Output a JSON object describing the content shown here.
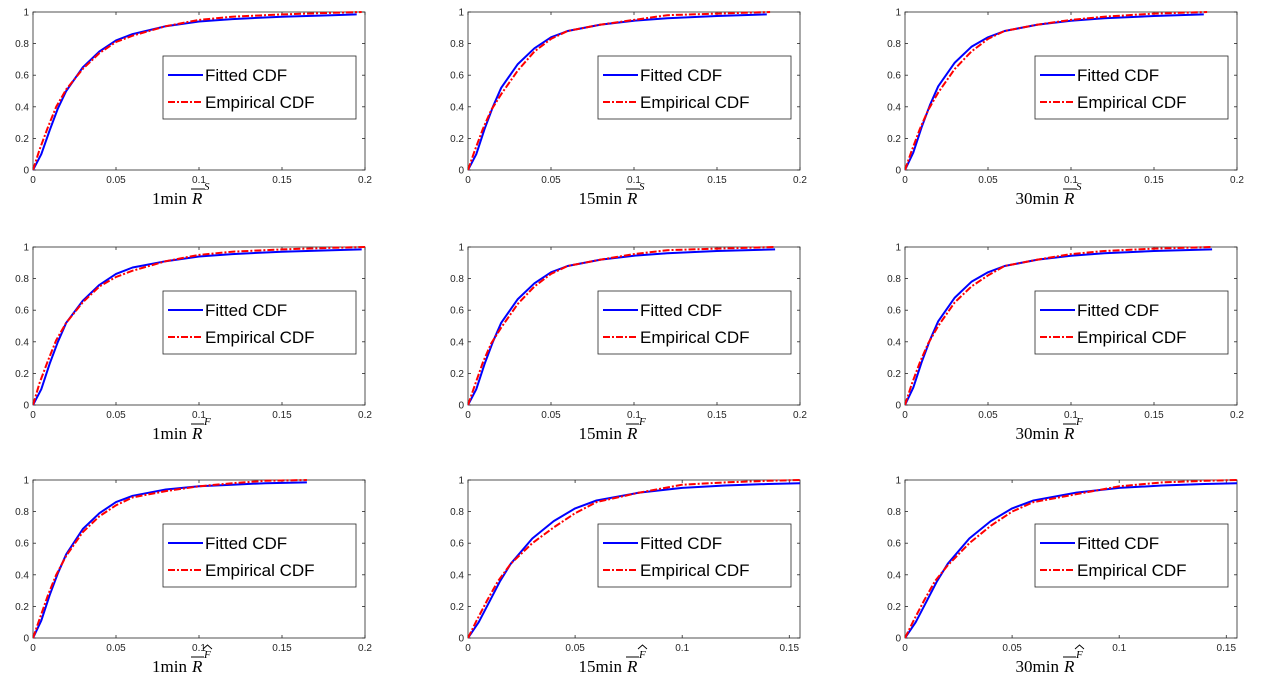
{
  "colors": {
    "fitted": "#0000ff",
    "empirical": "#ff0000",
    "axis": "#262626"
  },
  "chart_data": [
    {
      "type": "line",
      "label_prefix": "1min",
      "label_symbol": "R",
      "label_sup": "S",
      "hat": false,
      "xlim": [
        0,
        0.2
      ],
      "xticks": [
        0,
        0.05,
        0.1,
        0.15,
        0.2
      ],
      "xtick_labels": [
        "0",
        "0.05",
        "0.1",
        "0.15",
        "0.2"
      ],
      "ylim": [
        0,
        1
      ],
      "yticks": [
        0,
        0.2,
        0.4,
        0.6,
        0.8,
        1
      ],
      "ytick_labels": [
        "0",
        "0.2",
        "0.4",
        "0.6",
        "0.8",
        "1"
      ],
      "legend_position": "center-right",
      "series": [
        {
          "name": "Fitted  CDF",
          "x": [
            0,
            0.005,
            0.01,
            0.015,
            0.02,
            0.03,
            0.04,
            0.05,
            0.06,
            0.08,
            0.1,
            0.12,
            0.15,
            0.18,
            0.195
          ],
          "y": [
            0,
            0.1,
            0.25,
            0.39,
            0.5,
            0.65,
            0.75,
            0.82,
            0.86,
            0.91,
            0.94,
            0.955,
            0.97,
            0.98,
            0.985
          ]
        },
        {
          "name": "Empirical CDF",
          "x": [
            0,
            0.004,
            0.009,
            0.014,
            0.02,
            0.03,
            0.04,
            0.05,
            0.06,
            0.08,
            0.1,
            0.12,
            0.15,
            0.18,
            0.198
          ],
          "y": [
            0,
            0.13,
            0.27,
            0.4,
            0.51,
            0.64,
            0.74,
            0.81,
            0.85,
            0.91,
            0.95,
            0.97,
            0.985,
            0.995,
            1
          ]
        }
      ]
    },
    {
      "type": "line",
      "label_prefix": "15min",
      "label_symbol": "R",
      "label_sup": "S",
      "hat": false,
      "xlim": [
        0,
        0.2
      ],
      "xticks": [
        0,
        0.05,
        0.1,
        0.15,
        0.2
      ],
      "xtick_labels": [
        "0",
        "0.05",
        "0.1",
        "0.15",
        "0.2"
      ],
      "ylim": [
        0,
        1
      ],
      "yticks": [
        0,
        0.2,
        0.4,
        0.6,
        0.8,
        1
      ],
      "ytick_labels": [
        "0",
        "0.2",
        "0.4",
        "0.6",
        "0.8",
        "1"
      ],
      "legend_position": "center-right",
      "series": [
        {
          "name": "Fitted  CDF",
          "x": [
            0,
            0.005,
            0.01,
            0.015,
            0.02,
            0.03,
            0.04,
            0.05,
            0.06,
            0.08,
            0.1,
            0.12,
            0.15,
            0.18
          ],
          "y": [
            0,
            0.1,
            0.26,
            0.4,
            0.52,
            0.67,
            0.77,
            0.84,
            0.88,
            0.92,
            0.945,
            0.96,
            0.975,
            0.985
          ]
        },
        {
          "name": "Empirical CDF",
          "x": [
            0,
            0.004,
            0.009,
            0.014,
            0.02,
            0.03,
            0.04,
            0.05,
            0.06,
            0.08,
            0.1,
            0.12,
            0.15,
            0.182
          ],
          "y": [
            0,
            0.12,
            0.26,
            0.38,
            0.48,
            0.63,
            0.75,
            0.83,
            0.88,
            0.92,
            0.95,
            0.98,
            0.99,
            1
          ]
        }
      ]
    },
    {
      "type": "line",
      "label_prefix": "30min",
      "label_symbol": "R",
      "label_sup": "S",
      "hat": false,
      "xlim": [
        0,
        0.2
      ],
      "xticks": [
        0,
        0.05,
        0.1,
        0.15,
        0.2
      ],
      "xtick_labels": [
        "0",
        "0.05",
        "0.1",
        "0.15",
        "0.2"
      ],
      "ylim": [
        0,
        1
      ],
      "yticks": [
        0,
        0.2,
        0.4,
        0.6,
        0.8,
        1
      ],
      "ytick_labels": [
        "0",
        "0.2",
        "0.4",
        "0.6",
        "0.8",
        "1"
      ],
      "legend_position": "center-right",
      "series": [
        {
          "name": "Fitted  CDF",
          "x": [
            0,
            0.005,
            0.01,
            0.015,
            0.02,
            0.03,
            0.04,
            0.05,
            0.06,
            0.08,
            0.1,
            0.12,
            0.15,
            0.18
          ],
          "y": [
            0,
            0.11,
            0.27,
            0.41,
            0.53,
            0.68,
            0.78,
            0.84,
            0.88,
            0.92,
            0.945,
            0.96,
            0.975,
            0.985
          ]
        },
        {
          "name": "Empirical CDF",
          "x": [
            0,
            0.004,
            0.009,
            0.014,
            0.02,
            0.03,
            0.04,
            0.05,
            0.06,
            0.08,
            0.1,
            0.12,
            0.15,
            0.182
          ],
          "y": [
            0,
            0.12,
            0.26,
            0.38,
            0.49,
            0.64,
            0.75,
            0.83,
            0.88,
            0.92,
            0.95,
            0.97,
            0.99,
            1
          ]
        }
      ]
    },
    {
      "type": "line",
      "label_prefix": "1min",
      "label_symbol": "R",
      "label_sup": "F",
      "hat": false,
      "xlim": [
        0,
        0.2
      ],
      "xticks": [
        0,
        0.05,
        0.1,
        0.15,
        0.2
      ],
      "xtick_labels": [
        "0",
        "0.05",
        "0.1",
        "0.15",
        "0.2"
      ],
      "ylim": [
        0,
        1
      ],
      "yticks": [
        0,
        0.2,
        0.4,
        0.6,
        0.8,
        1
      ],
      "ytick_labels": [
        "0",
        "0.2",
        "0.4",
        "0.6",
        "0.8",
        "1"
      ],
      "legend_position": "center-right",
      "series": [
        {
          "name": "Fitted  CDF",
          "x": [
            0,
            0.005,
            0.01,
            0.015,
            0.02,
            0.03,
            0.04,
            0.05,
            0.06,
            0.08,
            0.1,
            0.12,
            0.15,
            0.18,
            0.198
          ],
          "y": [
            0,
            0.1,
            0.26,
            0.4,
            0.52,
            0.66,
            0.76,
            0.83,
            0.87,
            0.91,
            0.94,
            0.955,
            0.97,
            0.98,
            0.985
          ]
        },
        {
          "name": "Empirical CDF",
          "x": [
            0,
            0.004,
            0.009,
            0.014,
            0.02,
            0.03,
            0.04,
            0.05,
            0.06,
            0.08,
            0.1,
            0.12,
            0.15,
            0.18,
            0.2
          ],
          "y": [
            0,
            0.14,
            0.28,
            0.41,
            0.52,
            0.65,
            0.75,
            0.81,
            0.85,
            0.91,
            0.95,
            0.97,
            0.985,
            0.995,
            1
          ]
        }
      ]
    },
    {
      "type": "line",
      "label_prefix": "15min",
      "label_symbol": "R",
      "label_sup": "F",
      "hat": false,
      "xlim": [
        0,
        0.2
      ],
      "xticks": [
        0,
        0.05,
        0.1,
        0.15,
        0.2
      ],
      "xtick_labels": [
        "0",
        "0.05",
        "0.1",
        "0.15",
        "0.2"
      ],
      "ylim": [
        0,
        1
      ],
      "yticks": [
        0,
        0.2,
        0.4,
        0.6,
        0.8,
        1
      ],
      "ytick_labels": [
        "0",
        "0.2",
        "0.4",
        "0.6",
        "0.8",
        "1"
      ],
      "legend_position": "center-right",
      "series": [
        {
          "name": "Fitted  CDF",
          "x": [
            0,
            0.005,
            0.01,
            0.015,
            0.02,
            0.03,
            0.04,
            0.05,
            0.06,
            0.08,
            0.1,
            0.12,
            0.15,
            0.185
          ],
          "y": [
            0,
            0.1,
            0.26,
            0.4,
            0.52,
            0.67,
            0.77,
            0.84,
            0.88,
            0.92,
            0.945,
            0.96,
            0.975,
            0.985
          ]
        },
        {
          "name": "Empirical CDF",
          "x": [
            0,
            0.004,
            0.009,
            0.014,
            0.02,
            0.03,
            0.04,
            0.05,
            0.06,
            0.08,
            0.1,
            0.12,
            0.15,
            0.185
          ],
          "y": [
            0,
            0.12,
            0.27,
            0.39,
            0.49,
            0.64,
            0.75,
            0.83,
            0.88,
            0.92,
            0.955,
            0.98,
            0.99,
            1
          ]
        }
      ]
    },
    {
      "type": "line",
      "label_prefix": "30min",
      "label_symbol": "R",
      "label_sup": "F",
      "hat": false,
      "xlim": [
        0,
        0.2
      ],
      "xticks": [
        0,
        0.05,
        0.1,
        0.15,
        0.2
      ],
      "xtick_labels": [
        "0",
        "0.05",
        "0.1",
        "0.15",
        "0.2"
      ],
      "ylim": [
        0,
        1
      ],
      "yticks": [
        0,
        0.2,
        0.4,
        0.6,
        0.8,
        1
      ],
      "ytick_labels": [
        "0",
        "0.2",
        "0.4",
        "0.6",
        "0.8",
        "1"
      ],
      "legend_position": "center-right",
      "series": [
        {
          "name": "Fitted  CDF",
          "x": [
            0,
            0.005,
            0.01,
            0.015,
            0.02,
            0.03,
            0.04,
            0.05,
            0.06,
            0.08,
            0.1,
            0.12,
            0.15,
            0.185
          ],
          "y": [
            0,
            0.11,
            0.27,
            0.41,
            0.53,
            0.68,
            0.78,
            0.84,
            0.88,
            0.92,
            0.945,
            0.96,
            0.975,
            0.985
          ]
        },
        {
          "name": "Empirical CDF",
          "x": [
            0,
            0.004,
            0.009,
            0.014,
            0.02,
            0.03,
            0.04,
            0.05,
            0.06,
            0.08,
            0.1,
            0.12,
            0.15,
            0.185
          ],
          "y": [
            0,
            0.13,
            0.27,
            0.39,
            0.5,
            0.65,
            0.75,
            0.82,
            0.88,
            0.92,
            0.955,
            0.975,
            0.99,
            1
          ]
        }
      ]
    },
    {
      "type": "line",
      "label_prefix": "1min",
      "label_symbol": "R",
      "label_sup": "F",
      "hat": true,
      "xlim": [
        0,
        0.2
      ],
      "xticks": [
        0,
        0.05,
        0.1,
        0.15,
        0.2
      ],
      "xtick_labels": [
        "0",
        "0.05",
        "0.1",
        "0.15",
        "0.2"
      ],
      "ylim": [
        0,
        1
      ],
      "yticks": [
        0,
        0.2,
        0.4,
        0.6,
        0.8,
        1
      ],
      "ytick_labels": [
        "0",
        "0.2",
        "0.4",
        "0.6",
        "0.8",
        "1"
      ],
      "legend_position": "center-right",
      "series": [
        {
          "name": "Fitted  CDF",
          "x": [
            0,
            0.005,
            0.01,
            0.015,
            0.02,
            0.03,
            0.04,
            0.05,
            0.06,
            0.08,
            0.1,
            0.12,
            0.14,
            0.165
          ],
          "y": [
            0,
            0.11,
            0.27,
            0.41,
            0.53,
            0.69,
            0.79,
            0.86,
            0.9,
            0.94,
            0.96,
            0.97,
            0.98,
            0.985
          ]
        },
        {
          "name": "Empirical CDF",
          "x": [
            0,
            0.004,
            0.009,
            0.014,
            0.02,
            0.03,
            0.04,
            0.05,
            0.06,
            0.08,
            0.1,
            0.12,
            0.14,
            0.165
          ],
          "y": [
            0,
            0.12,
            0.27,
            0.4,
            0.52,
            0.67,
            0.77,
            0.84,
            0.89,
            0.93,
            0.96,
            0.98,
            0.995,
            1
          ]
        }
      ]
    },
    {
      "type": "line",
      "label_prefix": "15min",
      "label_symbol": "R",
      "label_sup": "F",
      "hat": true,
      "xlim": [
        0,
        0.155
      ],
      "xticks": [
        0,
        0.05,
        0.1,
        0.15
      ],
      "xtick_labels": [
        "0",
        "0.05",
        "0.1",
        "0.15"
      ],
      "ylim": [
        0,
        1
      ],
      "yticks": [
        0,
        0.2,
        0.4,
        0.6,
        0.8,
        1
      ],
      "ytick_labels": [
        "0",
        "0.2",
        "0.4",
        "0.6",
        "0.8",
        "1"
      ],
      "legend_position": "center-right",
      "series": [
        {
          "name": "Fitted  CDF",
          "x": [
            0,
            0.005,
            0.01,
            0.015,
            0.02,
            0.03,
            0.04,
            0.05,
            0.06,
            0.08,
            0.1,
            0.12,
            0.14,
            0.155
          ],
          "y": [
            0,
            0.1,
            0.23,
            0.36,
            0.47,
            0.63,
            0.74,
            0.82,
            0.87,
            0.92,
            0.95,
            0.965,
            0.975,
            0.98
          ]
        },
        {
          "name": "Empirical CDF",
          "x": [
            0,
            0.004,
            0.009,
            0.014,
            0.02,
            0.03,
            0.04,
            0.05,
            0.06,
            0.08,
            0.1,
            0.12,
            0.14,
            0.155
          ],
          "y": [
            0,
            0.11,
            0.24,
            0.36,
            0.47,
            0.6,
            0.7,
            0.79,
            0.86,
            0.92,
            0.97,
            0.985,
            0.995,
            1
          ]
        }
      ]
    },
    {
      "type": "line",
      "label_prefix": "30min",
      "label_symbol": "R",
      "label_sup": "F",
      "hat": true,
      "xlim": [
        0,
        0.155
      ],
      "xticks": [
        0,
        0.05,
        0.1,
        0.15
      ],
      "xtick_labels": [
        "0",
        "0.05",
        "0.1",
        "0.15"
      ],
      "ylim": [
        0,
        1
      ],
      "yticks": [
        0,
        0.2,
        0.4,
        0.6,
        0.8,
        1
      ],
      "ytick_labels": [
        "0",
        "0.2",
        "0.4",
        "0.6",
        "0.8",
        "1"
      ],
      "legend_position": "center-right",
      "series": [
        {
          "name": "Fitted  CDF",
          "x": [
            0,
            0.005,
            0.01,
            0.015,
            0.02,
            0.03,
            0.04,
            0.05,
            0.06,
            0.08,
            0.1,
            0.12,
            0.14,
            0.155
          ],
          "y": [
            0,
            0.1,
            0.23,
            0.36,
            0.47,
            0.63,
            0.74,
            0.82,
            0.87,
            0.92,
            0.95,
            0.965,
            0.975,
            0.98
          ]
        },
        {
          "name": "Empirical CDF",
          "x": [
            0,
            0.004,
            0.009,
            0.014,
            0.02,
            0.03,
            0.04,
            0.05,
            0.06,
            0.08,
            0.1,
            0.12,
            0.14,
            0.155
          ],
          "y": [
            0,
            0.11,
            0.24,
            0.36,
            0.46,
            0.6,
            0.71,
            0.8,
            0.86,
            0.91,
            0.96,
            0.985,
            0.995,
            1
          ]
        }
      ]
    }
  ]
}
